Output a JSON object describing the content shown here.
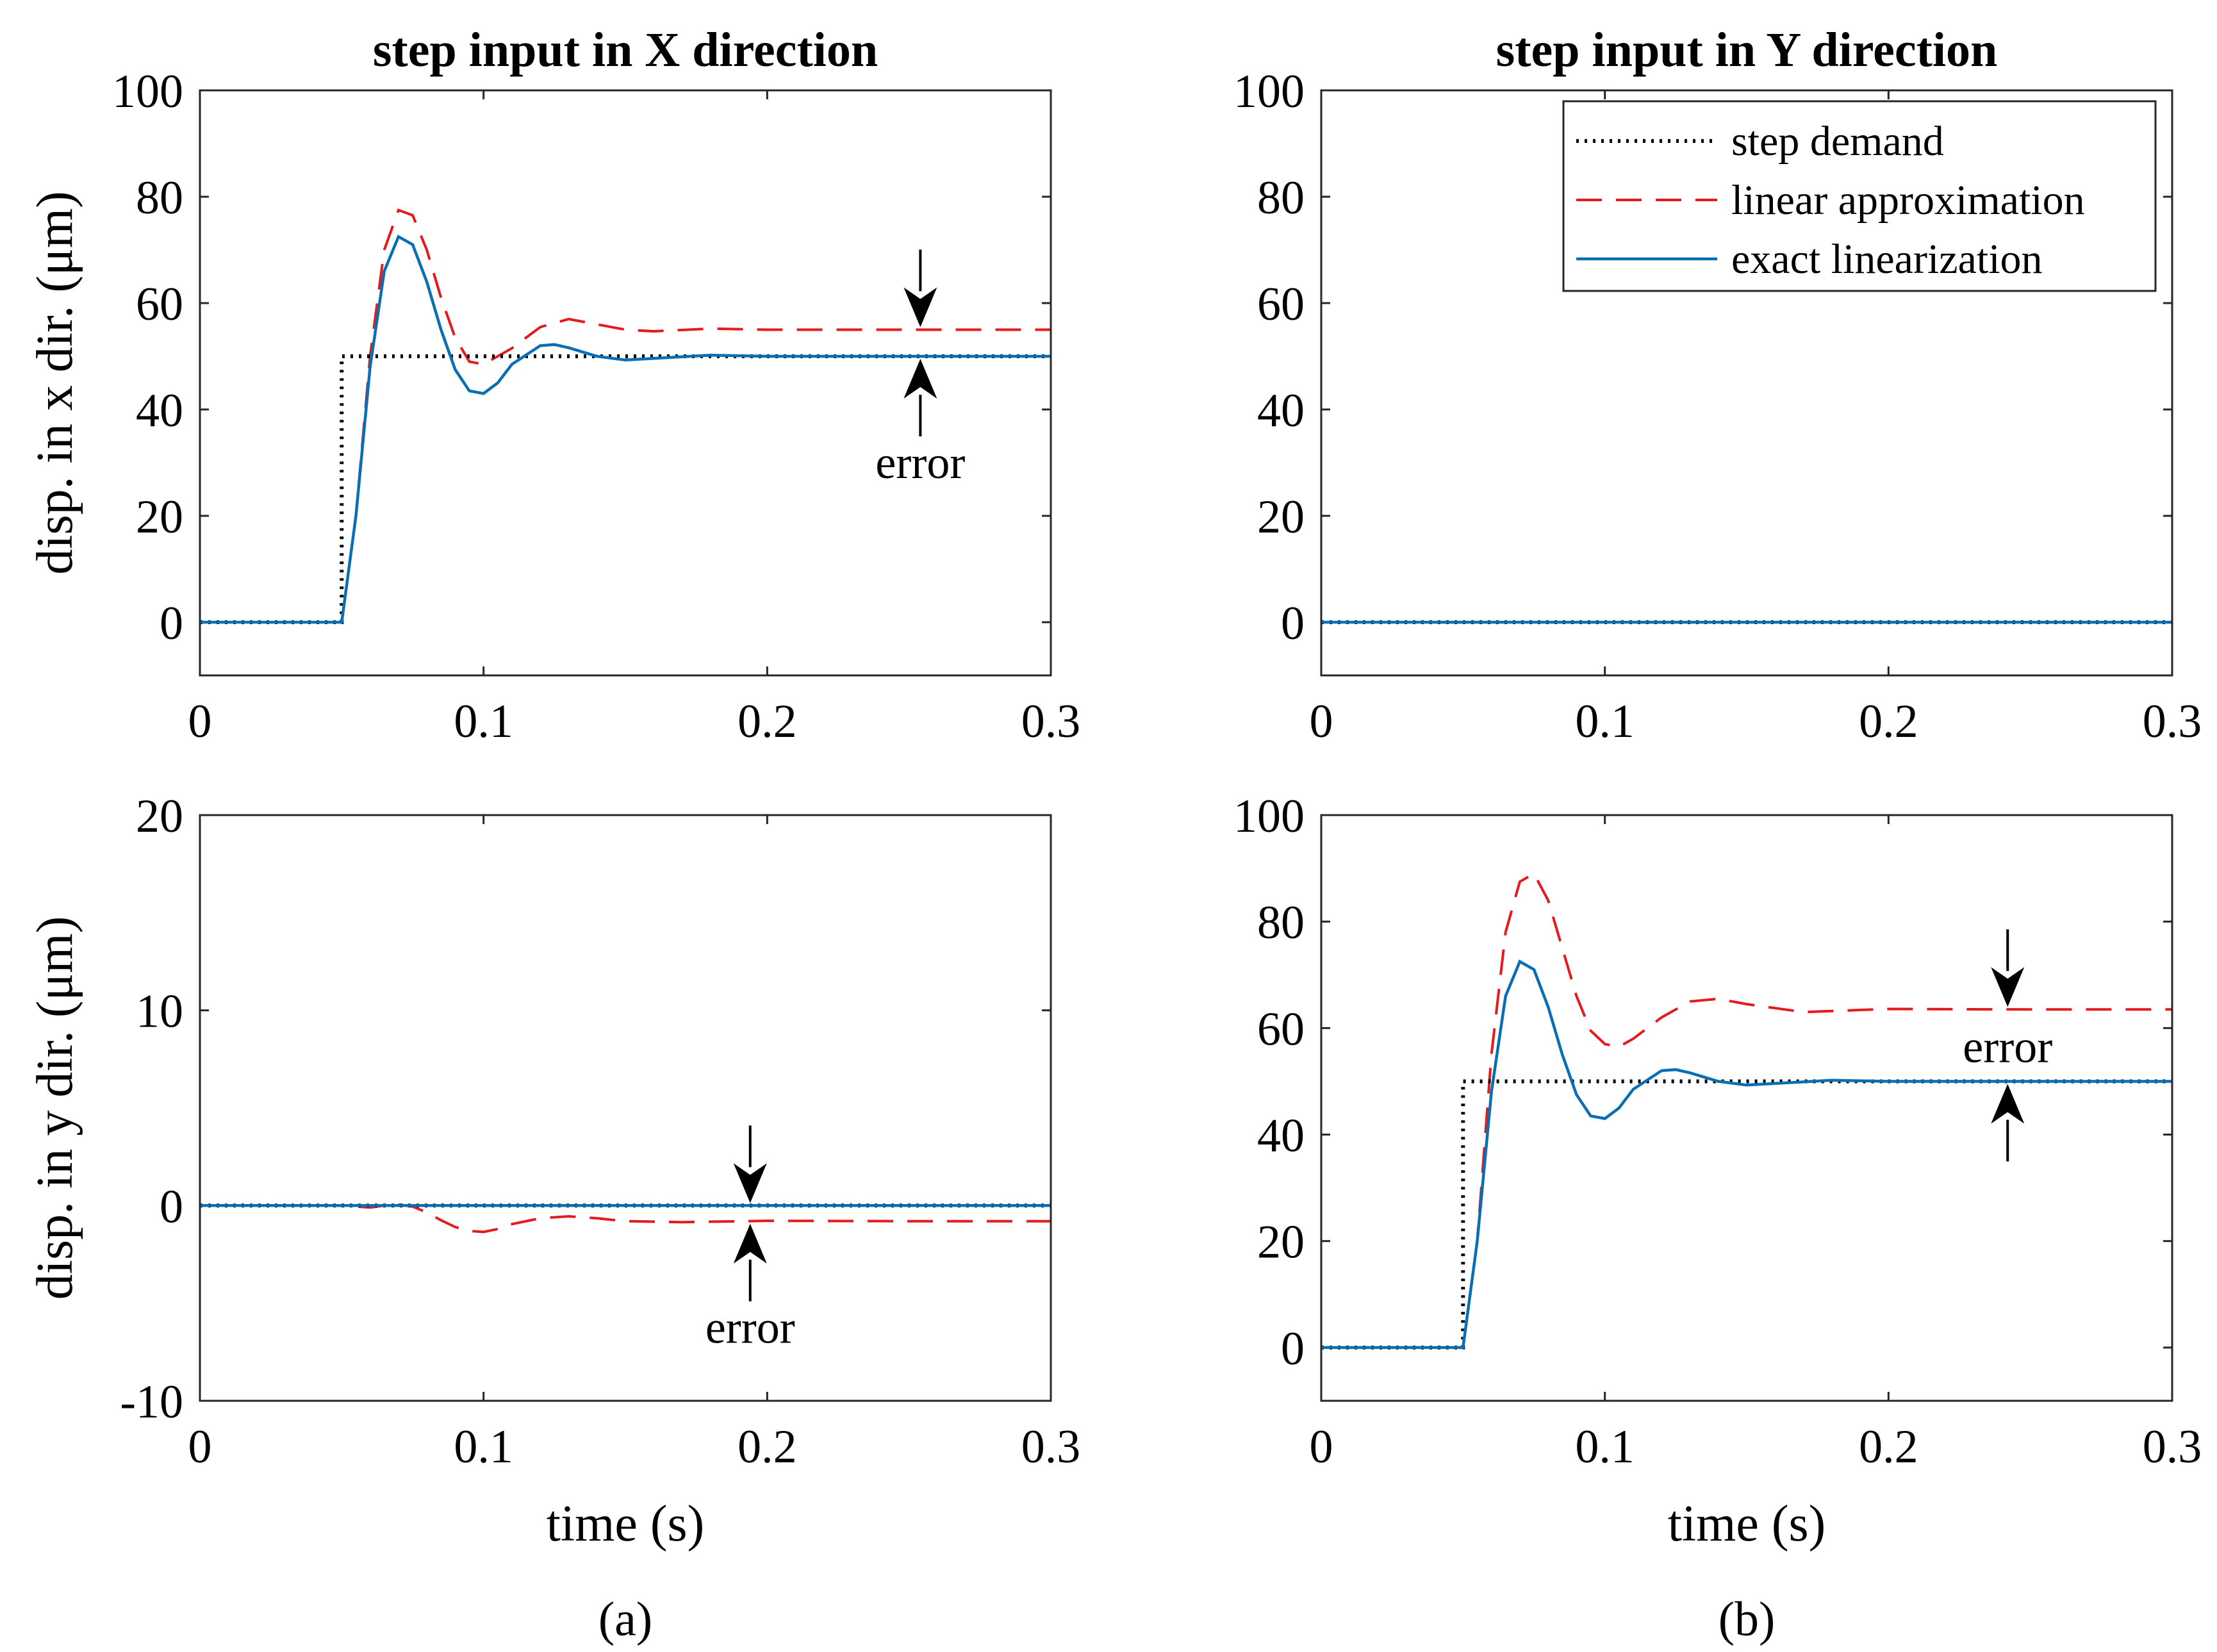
{
  "captions": {
    "a": "(a)",
    "b": "(b)"
  },
  "legend": {
    "step": "step demand",
    "linear": "linear approximation",
    "exact": "exact linearization"
  },
  "colors": {
    "step": "#000000",
    "linear": "#e41a1c",
    "exact": "#0a6eb4"
  },
  "chart_data": [
    {
      "id": "ax",
      "type": "line",
      "title": "step input in X direction",
      "xlabel": "",
      "ylabel": "disp. in x dir. (μm)",
      "xlim": [
        0,
        0.3
      ],
      "ylim": [
        -10,
        100
      ],
      "xticks": [
        0,
        0.1,
        0.2,
        0.3
      ],
      "xticklabels": [
        "0",
        "0.1",
        "0.2",
        "0.3"
      ],
      "yticks": [
        0,
        20,
        40,
        60,
        80,
        100
      ],
      "yticklabels": [
        "0",
        "20",
        "40",
        "60",
        "80",
        "100"
      ],
      "annotation": {
        "text": "error",
        "x": 0.254,
        "y_top": 55,
        "y_bottom": 50
      },
      "series": [
        {
          "key": "step",
          "name": "step demand",
          "x": [
            0,
            0.05,
            0.05,
            0.3
          ],
          "y": [
            0,
            0,
            50,
            50
          ]
        },
        {
          "key": "linear",
          "name": "linear approximation",
          "x": [
            0,
            0.05,
            0.055,
            0.06,
            0.065,
            0.07,
            0.075,
            0.08,
            0.085,
            0.09,
            0.095,
            0.1,
            0.11,
            0.12,
            0.13,
            0.14,
            0.15,
            0.16,
            0.18,
            0.2,
            0.25,
            0.3
          ],
          "y": [
            0,
            0,
            20,
            50,
            70,
            77.5,
            76.5,
            70,
            61,
            53.5,
            49,
            48.5,
            51.5,
            55.5,
            57,
            56,
            55,
            54.7,
            55.2,
            55,
            55,
            55
          ]
        },
        {
          "key": "exact",
          "name": "exact linearization",
          "x": [
            0,
            0.05,
            0.055,
            0.06,
            0.065,
            0.07,
            0.075,
            0.08,
            0.085,
            0.09,
            0.095,
            0.1,
            0.105,
            0.11,
            0.12,
            0.125,
            0.13,
            0.14,
            0.15,
            0.16,
            0.18,
            0.2,
            0.25,
            0.3
          ],
          "y": [
            0,
            0,
            20,
            48,
            66,
            72.5,
            71,
            64,
            55,
            47.5,
            43.5,
            43,
            45,
            48.5,
            52,
            52.2,
            51.6,
            50,
            49.3,
            49.6,
            50.2,
            50,
            50,
            50
          ]
        }
      ]
    },
    {
      "id": "bx",
      "type": "line",
      "title": "step input in Y direction",
      "xlabel": "",
      "ylabel": "",
      "xlim": [
        0,
        0.3
      ],
      "ylim": [
        -10,
        100
      ],
      "xticks": [
        0,
        0.1,
        0.2,
        0.3
      ],
      "xticklabels": [
        "0",
        "0.1",
        "0.2",
        "0.3"
      ],
      "yticks": [
        0,
        20,
        40,
        60,
        80,
        100
      ],
      "yticklabels": [
        "0",
        "20",
        "40",
        "60",
        "80",
        "100"
      ],
      "legend_position": "top-right",
      "series": [
        {
          "key": "step",
          "name": "step demand",
          "x": [
            0,
            0.3
          ],
          "y": [
            0,
            0
          ]
        },
        {
          "key": "linear",
          "name": "linear approximation",
          "x": [
            0,
            0.3
          ],
          "y": [
            0,
            0
          ]
        },
        {
          "key": "exact",
          "name": "exact linearization",
          "x": [
            0,
            0.3
          ],
          "y": [
            0,
            0
          ]
        }
      ]
    },
    {
      "id": "ay",
      "type": "line",
      "title": "",
      "xlabel": "time (s)",
      "ylabel": "disp. in y dir. (μm)",
      "xlim": [
        0,
        0.3
      ],
      "ylim": [
        -10,
        20
      ],
      "xticks": [
        0,
        0.1,
        0.2,
        0.3
      ],
      "xticklabels": [
        "0",
        "0.1",
        "0.2",
        "0.3"
      ],
      "yticks": [
        -10,
        0,
        10,
        20
      ],
      "yticklabels": [
        "-10",
        "0",
        "10",
        "20"
      ],
      "annotation": {
        "text": "error",
        "x": 0.194,
        "y_top": 0,
        "y_bottom": -0.8
      },
      "series": [
        {
          "key": "step",
          "name": "step demand",
          "x": [
            0,
            0.3
          ],
          "y": [
            0,
            0
          ]
        },
        {
          "key": "linear",
          "name": "linear approximation",
          "x": [
            0,
            0.05,
            0.06,
            0.065,
            0.07,
            0.075,
            0.08,
            0.085,
            0.09,
            0.095,
            0.1,
            0.105,
            0.11,
            0.12,
            0.13,
            0.14,
            0.15,
            0.17,
            0.2,
            0.25,
            0.3
          ],
          "y": [
            0,
            0,
            -0.1,
            0,
            0.05,
            -0.05,
            -0.35,
            -0.75,
            -1.1,
            -1.3,
            -1.35,
            -1.2,
            -0.95,
            -0.65,
            -0.55,
            -0.65,
            -0.8,
            -0.85,
            -0.78,
            -0.8,
            -0.8
          ]
        },
        {
          "key": "exact",
          "name": "exact linearization",
          "x": [
            0,
            0.3
          ],
          "y": [
            0,
            0
          ]
        }
      ]
    },
    {
      "id": "by",
      "type": "line",
      "title": "",
      "xlabel": "time (s)",
      "ylabel": "",
      "xlim": [
        0,
        0.3
      ],
      "ylim": [
        -10,
        100
      ],
      "xticks": [
        0,
        0.1,
        0.2,
        0.3
      ],
      "xticklabels": [
        "0",
        "0.1",
        "0.2",
        "0.3"
      ],
      "yticks": [
        0,
        20,
        40,
        60,
        80,
        100
      ],
      "yticklabels": [
        "0",
        "20",
        "40",
        "60",
        "80",
        "100"
      ],
      "annotation": {
        "text": "error",
        "x": 0.242,
        "y_top": 63.5,
        "y_bottom": 50
      },
      "series": [
        {
          "key": "step",
          "name": "step demand",
          "x": [
            0,
            0.05,
            0.05,
            0.3
          ],
          "y": [
            0,
            0,
            50,
            50
          ]
        },
        {
          "key": "linear",
          "name": "linear approximation",
          "x": [
            0,
            0.05,
            0.055,
            0.06,
            0.065,
            0.07,
            0.075,
            0.08,
            0.085,
            0.09,
            0.095,
            0.1,
            0.105,
            0.11,
            0.12,
            0.13,
            0.14,
            0.15,
            0.17,
            0.2,
            0.25,
            0.3
          ],
          "y": [
            0,
            0,
            20,
            55,
            78,
            87.5,
            89,
            84,
            75,
            66,
            59.5,
            57,
            56.5,
            58,
            62,
            65,
            65.5,
            64.5,
            63,
            63.6,
            63.5,
            63.5
          ]
        },
        {
          "key": "exact",
          "name": "exact linearization",
          "x": [
            0,
            0.05,
            0.055,
            0.06,
            0.065,
            0.07,
            0.075,
            0.08,
            0.085,
            0.09,
            0.095,
            0.1,
            0.105,
            0.11,
            0.12,
            0.125,
            0.13,
            0.14,
            0.15,
            0.16,
            0.18,
            0.2,
            0.25,
            0.3
          ],
          "y": [
            0,
            0,
            20,
            48,
            66,
            72.5,
            71,
            64,
            55,
            47.5,
            43.5,
            43,
            45,
            48.5,
            52,
            52.2,
            51.6,
            50,
            49.3,
            49.6,
            50.2,
            50,
            50,
            50
          ]
        }
      ]
    }
  ]
}
